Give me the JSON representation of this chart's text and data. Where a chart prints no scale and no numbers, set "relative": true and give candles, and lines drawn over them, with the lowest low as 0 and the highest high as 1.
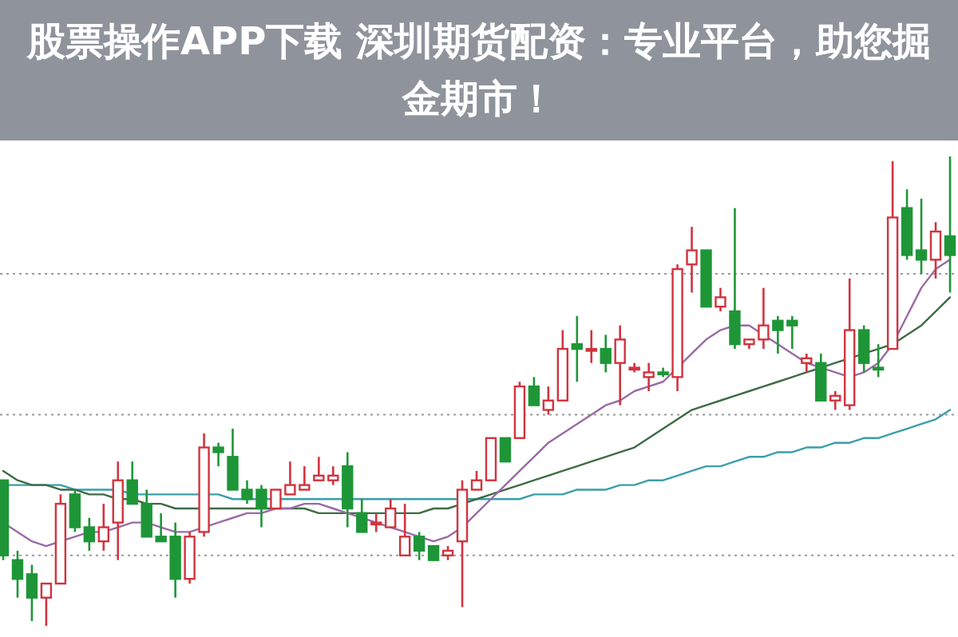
{
  "chart_data": {
    "type": "candlestick",
    "relative": true,
    "grid": true,
    "title": "股票操作APP下载 深圳期货配资：专业平台，助您掘金期市！",
    "categories": [
      null,
      null,
      null,
      null,
      null,
      null,
      null,
      null,
      null,
      null,
      null,
      null,
      null,
      null,
      null,
      null,
      null,
      null,
      null,
      null,
      null,
      null,
      null,
      null,
      null,
      null,
      null,
      null,
      null,
      null,
      null,
      null,
      null,
      null,
      null,
      null,
      null,
      null,
      null,
      null,
      null,
      null,
      null,
      null,
      null,
      null,
      null,
      null,
      null,
      null,
      null,
      null,
      null,
      null,
      null,
      null,
      null,
      null,
      null,
      null,
      null,
      null,
      null,
      null,
      null,
      null,
      null
    ],
    "ohlc": [
      [
        0.31,
        0.31,
        0.14,
        0.15
      ],
      [
        0.14,
        0.16,
        0.06,
        0.1
      ],
      [
        0.11,
        0.13,
        0.01,
        0.06
      ],
      [
        0.06,
        0.09,
        0,
        0.09
      ],
      [
        0.09,
        0.28,
        0.09,
        0.26
      ],
      [
        0.28,
        0.29,
        0.2,
        0.21
      ],
      [
        0.21,
        0.23,
        0.16,
        0.18
      ],
      [
        0.18,
        0.26,
        0.16,
        0.21
      ],
      [
        0.22,
        0.35,
        0.14,
        0.31
      ],
      [
        0.31,
        0.35,
        0.26,
        0.26
      ],
      [
        0.26,
        0.29,
        0.19,
        0.19
      ],
      [
        0.19,
        0.24,
        0.18,
        0.18
      ],
      [
        0.19,
        0.22,
        0.06,
        0.1
      ],
      [
        0.1,
        0.2,
        0.09,
        0.19
      ],
      [
        0.2,
        0.41,
        0.19,
        0.38
      ],
      [
        0.38,
        0.39,
        0.34,
        0.37
      ],
      [
        0.36,
        0.42,
        0.29,
        0.29
      ],
      [
        0.29,
        0.31,
        0.26,
        0.27
      ],
      [
        0.29,
        0.3,
        0.21,
        0.25
      ],
      [
        0.25,
        0.29,
        0.25,
        0.29
      ],
      [
        0.28,
        0.35,
        0.28,
        0.3
      ],
      [
        0.29,
        0.34,
        0.29,
        0.3
      ],
      [
        0.31,
        0.36,
        0.31,
        0.32
      ],
      [
        0.31,
        0.34,
        0.3,
        0.32
      ],
      [
        0.34,
        0.37,
        0.21,
        0.25
      ],
      [
        0.24,
        0.27,
        0.2,
        0.2
      ],
      [
        0.22,
        0.24,
        0.2,
        0.22
      ],
      [
        0.21,
        0.27,
        0.21,
        0.25
      ],
      [
        0.15,
        0.26,
        0.15,
        0.19
      ],
      [
        0.19,
        0.2,
        0.14,
        0.16
      ],
      [
        0.17,
        0.17,
        0.14,
        0.14
      ],
      [
        0.15,
        0.17,
        0.14,
        0.16
      ],
      [
        0.18,
        0.31,
        0.04,
        0.29
      ],
      [
        0.29,
        0.33,
        0.29,
        0.31
      ],
      [
        0.31,
        0.4,
        0.31,
        0.4
      ],
      [
        0.4,
        0.4,
        0.35,
        0.35
      ],
      [
        0.4,
        0.52,
        0.4,
        0.51
      ],
      [
        0.51,
        0.53,
        0.47,
        0.47
      ],
      [
        0.46,
        0.51,
        0.45,
        0.48
      ],
      [
        0.48,
        0.63,
        0.48,
        0.59
      ],
      [
        0.6,
        0.66,
        0.52,
        0.59
      ],
      [
        0.59,
        0.63,
        0.56,
        0.59
      ],
      [
        0.59,
        0.62,
        0.54,
        0.56
      ],
      [
        0.56,
        0.64,
        0.47,
        0.61
      ],
      [
        0.55,
        0.56,
        0.54,
        0.55
      ],
      [
        0.53,
        0.56,
        0.5,
        0.54
      ],
      [
        0.54,
        0.55,
        0.53,
        0.54
      ],
      [
        0.53,
        0.77,
        0.5,
        0.76
      ],
      [
        0.77,
        0.85,
        0.71,
        0.8
      ],
      [
        0.8,
        0.8,
        0.68,
        0.68
      ],
      [
        0.68,
        0.72,
        0.67,
        0.7
      ],
      [
        0.67,
        0.89,
        0.59,
        0.6
      ],
      [
        0.6,
        0.61,
        0.59,
        0.61
      ],
      [
        0.61,
        0.72,
        0.59,
        0.64
      ],
      [
        0.65,
        0.66,
        0.58,
        0.63
      ],
      [
        0.65,
        0.66,
        0.59,
        0.64
      ],
      [
        0.56,
        0.58,
        0.54,
        0.57
      ],
      [
        0.56,
        0.58,
        0.48,
        0.48
      ],
      [
        0.48,
        0.5,
        0.46,
        0.49
      ],
      [
        0.47,
        0.74,
        0.46,
        0.63
      ],
      [
        0.63,
        0.64,
        0.54,
        0.56
      ],
      [
        0.55,
        0.6,
        0.53,
        0.55
      ],
      [
        0.59,
        0.99,
        0.59,
        0.87
      ],
      [
        0.89,
        0.93,
        0.78,
        0.79
      ],
      [
        0.8,
        0.91,
        0.75,
        0.78
      ],
      [
        0.78,
        0.86,
        0.74,
        0.84
      ],
      [
        0.83,
        1,
        0.71,
        0.79
      ]
    ],
    "colors": [
      "#1e9638",
      "#1e9638",
      "#1e9638",
      "#d0343f",
      "#d0343f",
      "#1e9638",
      "#1e9638",
      "#d0343f",
      "#d0343f",
      "#1e9638",
      "#1e9638",
      "#1e9638",
      "#1e9638",
      "#d0343f",
      "#d0343f",
      "#1e9638",
      "#1e9638",
      "#1e9638",
      "#1e9638",
      "#d0343f",
      "#d0343f",
      "#d0343f",
      "#d0343f",
      "#d0343f",
      "#1e9638",
      "#1e9638",
      "#d0343f",
      "#d0343f",
      "#d0343f",
      "#1e9638",
      "#1e9638",
      "#d0343f",
      "#d0343f",
      "#d0343f",
      "#d0343f",
      "#1e9638",
      "#d0343f",
      "#1e9638",
      "#d0343f",
      "#d0343f",
      "#1e9638",
      "#d0343f",
      "#1e9638",
      "#d0343f",
      "#d0343f",
      "#d0343f",
      "#1e9638",
      "#d0343f",
      "#d0343f",
      "#1e9638",
      "#d0343f",
      "#1e9638",
      "#d0343f",
      "#d0343f",
      "#1e9638",
      "#1e9638",
      "#d0343f",
      "#1e9638",
      "#d0343f",
      "#d0343f",
      "#1e9638",
      "#1e9638",
      "#d0343f",
      "#1e9638",
      "#1e9638",
      "#d0343f",
      "#1e9638"
    ],
    "series": [
      {
        "type": "line",
        "color": "#3a9fa8",
        "values": [
          0.3,
          0.3,
          0.3,
          0.3,
          0.3,
          0.29,
          0.29,
          0.29,
          0.29,
          0.28,
          0.28,
          0.28,
          0.28,
          0.28,
          0.28,
          0.28,
          0.27,
          0.27,
          0.27,
          0.27,
          0.27,
          0.27,
          0.27,
          0.27,
          0.27,
          0.27,
          0.27,
          0.27,
          0.27,
          0.27,
          0.27,
          0.27,
          0.27,
          0.27,
          0.27,
          0.27,
          0.27,
          0.28,
          0.28,
          0.28,
          0.29,
          0.29,
          0.29,
          0.3,
          0.3,
          0.31,
          0.31,
          0.32,
          0.33,
          0.34,
          0.34,
          0.35,
          0.36,
          0.36,
          0.37,
          0.37,
          0.38,
          0.38,
          0.39,
          0.39,
          0.4,
          0.4,
          0.41,
          0.42,
          0.43,
          0.44,
          0.46
        ]
      },
      {
        "type": "line",
        "color": "#3e6b45",
        "values": [
          0.33,
          0.31,
          0.3,
          0.3,
          0.29,
          0.29,
          0.28,
          0.28,
          0.27,
          0.27,
          0.26,
          0.26,
          0.25,
          0.25,
          0.25,
          0.25,
          0.25,
          0.25,
          0.25,
          0.25,
          0.25,
          0.25,
          0.24,
          0.24,
          0.24,
          0.24,
          0.24,
          0.24,
          0.24,
          0.24,
          0.25,
          0.25,
          0.26,
          0.27,
          0.28,
          0.29,
          0.3,
          0.31,
          0.32,
          0.33,
          0.34,
          0.35,
          0.36,
          0.37,
          0.38,
          0.4,
          0.42,
          0.44,
          0.46,
          0.47,
          0.48,
          0.49,
          0.5,
          0.51,
          0.52,
          0.53,
          0.54,
          0.55,
          0.56,
          0.57,
          0.58,
          0.59,
          0.6,
          0.62,
          0.64,
          0.67,
          0.7
        ]
      },
      {
        "type": "line",
        "color": "#9b6aa6",
        "values": [
          0.22,
          0.2,
          0.18,
          0.17,
          0.18,
          0.19,
          0.2,
          0.2,
          0.21,
          0.22,
          0.22,
          0.21,
          0.2,
          0.2,
          0.21,
          0.22,
          0.23,
          0.24,
          0.24,
          0.25,
          0.25,
          0.26,
          0.26,
          0.25,
          0.24,
          0.23,
          0.22,
          0.21,
          0.2,
          0.19,
          0.18,
          0.19,
          0.21,
          0.24,
          0.27,
          0.3,
          0.33,
          0.36,
          0.39,
          0.41,
          0.43,
          0.45,
          0.47,
          0.48,
          0.5,
          0.51,
          0.52,
          0.55,
          0.58,
          0.61,
          0.63,
          0.64,
          0.64,
          0.62,
          0.6,
          0.58,
          0.56,
          0.55,
          0.54,
          0.53,
          0.54,
          0.56,
          0.6,
          0.66,
          0.72,
          0.76,
          0.78
        ]
      }
    ]
  }
}
